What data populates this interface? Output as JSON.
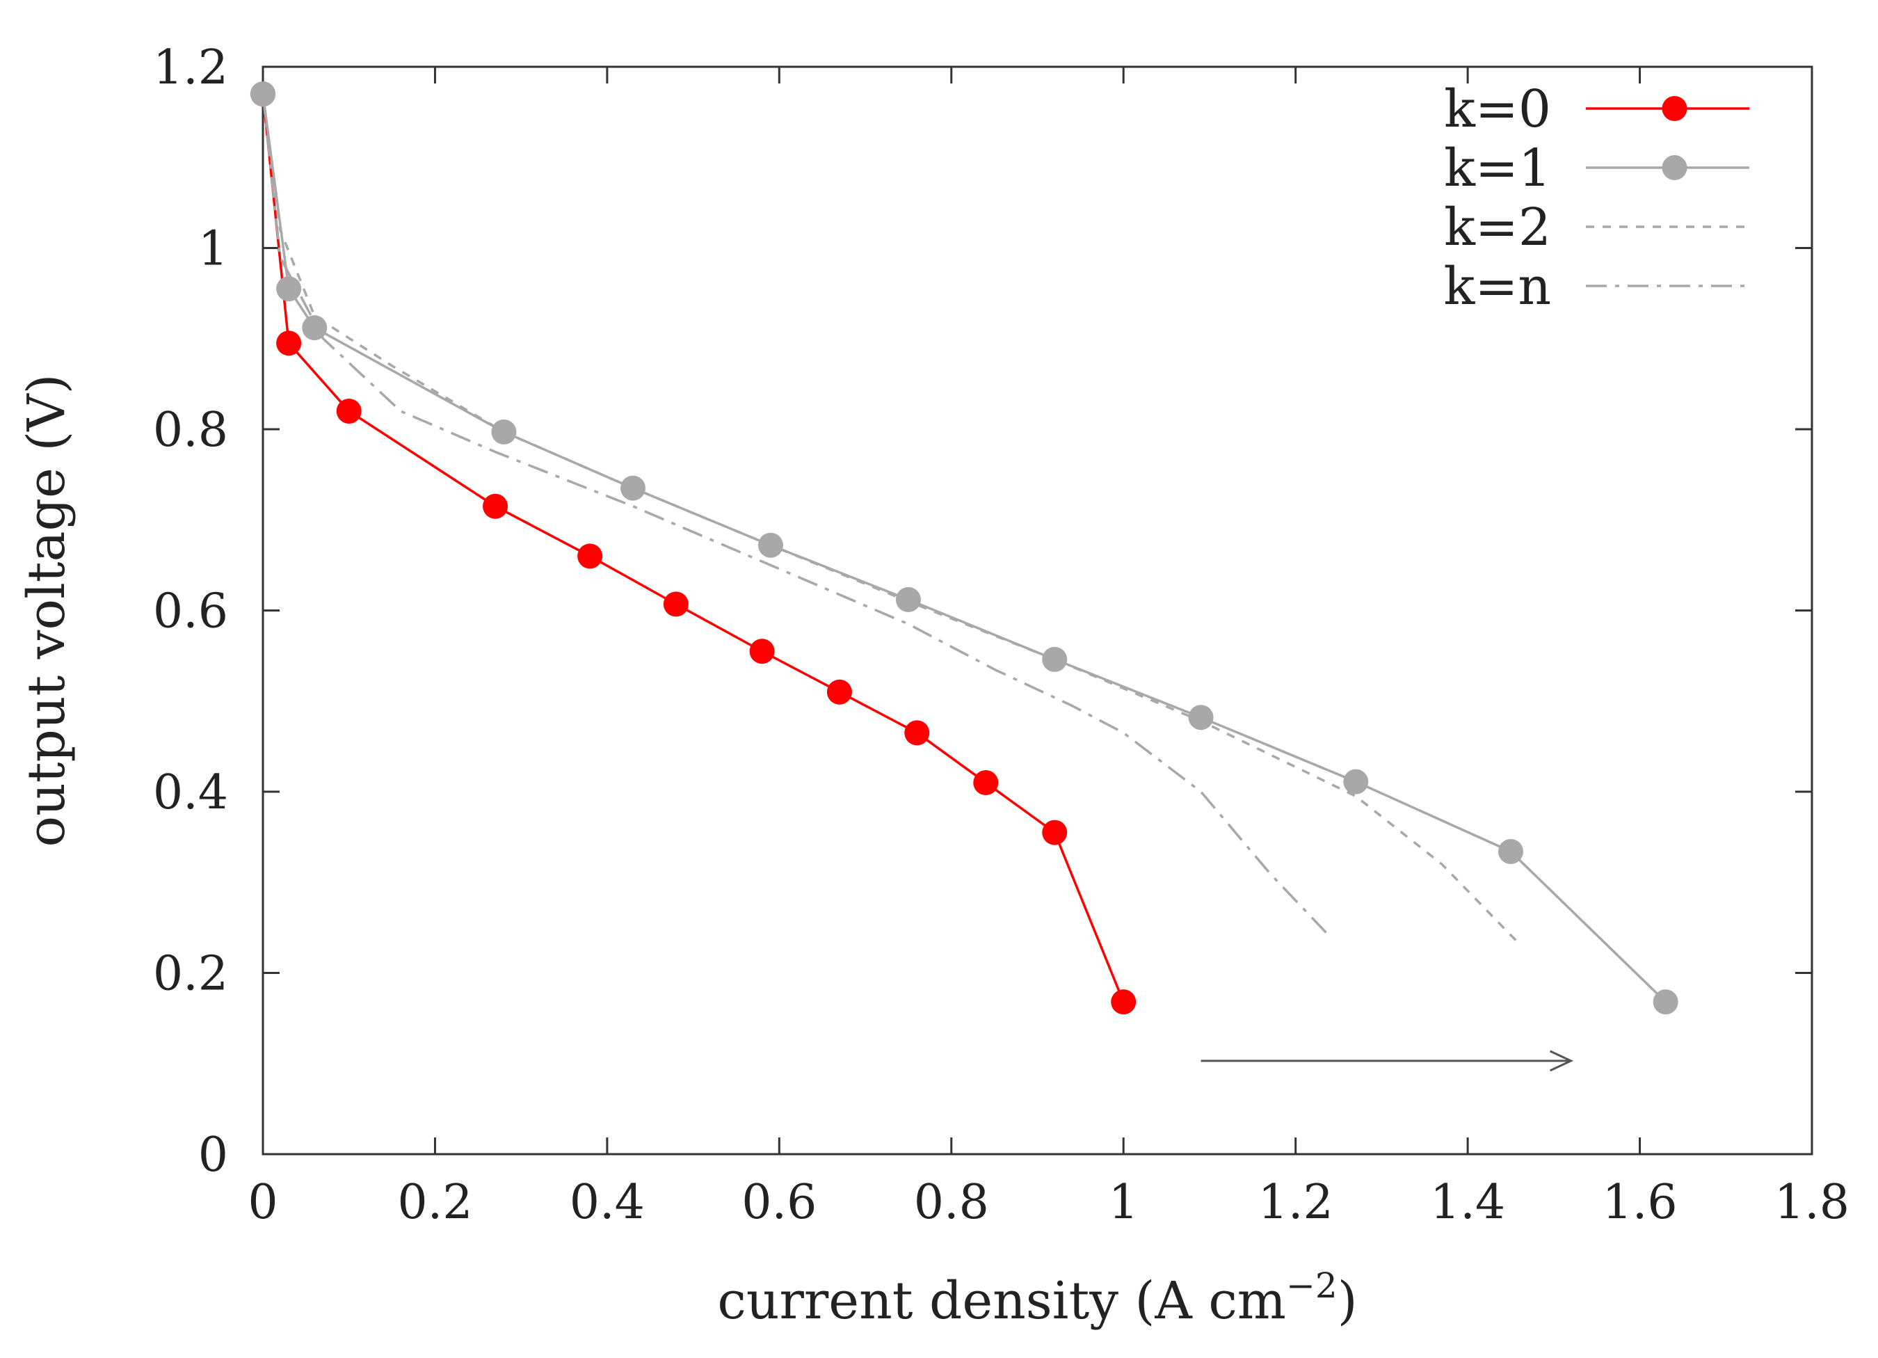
{
  "chart_data": {
    "type": "line",
    "title": "",
    "xlabel": "current density (A cm",
    "xlabel_superscript": "−2",
    "xlabel_close": ")",
    "ylabel": "output voltage (V)",
    "xlim": [
      0,
      1.8
    ],
    "ylim": [
      0,
      1.2
    ],
    "xticks": [
      0,
      0.2,
      0.4,
      0.6,
      0.8,
      1,
      1.2,
      1.4,
      1.6,
      1.8
    ],
    "xtick_labels": [
      "0",
      "0.2",
      "0.4",
      "0.6",
      "0.8",
      "1",
      "1.2",
      "1.4",
      "1.6",
      "1.8"
    ],
    "yticks": [
      0,
      0.2,
      0.4,
      0.6,
      0.8,
      1,
      1.2
    ],
    "ytick_labels": [
      "0",
      "0.2",
      "0.4",
      "0.6",
      "0.8",
      "1",
      "1.2"
    ],
    "grid": false,
    "legend_position": "top-right",
    "series": [
      {
        "name": "k=0",
        "color": "#ff0000",
        "style": "solid-markers",
        "x": [
          0,
          0.03,
          0.1,
          0.27,
          0.38,
          0.48,
          0.58,
          0.67,
          0.76,
          0.84,
          0.92,
          1.0
        ],
        "y": [
          1.17,
          0.895,
          0.82,
          0.715,
          0.66,
          0.607,
          0.555,
          0.51,
          0.465,
          0.41,
          0.355,
          0.168
        ]
      },
      {
        "name": "k=1",
        "color": "#a8a8a8",
        "style": "solid-markers",
        "x": [
          0,
          0.03,
          0.06,
          0.28,
          0.43,
          0.59,
          0.75,
          0.92,
          1.09,
          1.27,
          1.45,
          1.63
        ],
        "y": [
          1.17,
          0.955,
          0.912,
          0.797,
          0.735,
          0.672,
          0.612,
          0.546,
          0.482,
          0.411,
          0.334,
          0.168
        ]
      },
      {
        "name": "k=2",
        "color": "#a8a8a8",
        "style": "dashed",
        "x": [
          0,
          0.02,
          0.06,
          0.15,
          0.28,
          0.43,
          0.59,
          0.75,
          0.92,
          1.09,
          1.27,
          1.37,
          1.46
        ],
        "y": [
          1.17,
          1.02,
          0.925,
          0.87,
          0.797,
          0.735,
          0.672,
          0.61,
          0.546,
          0.478,
          0.395,
          0.32,
          0.232
        ]
      },
      {
        "name": "k=n",
        "color": "#a8a8a8",
        "style": "dashdot",
        "x": [
          0,
          0.02,
          0.07,
          0.16,
          0.27,
          0.43,
          0.59,
          0.75,
          0.85,
          0.94,
          1.0,
          1.09,
          1.17,
          1.24
        ],
        "y": [
          1.17,
          0.99,
          0.9,
          0.82,
          0.775,
          0.715,
          0.65,
          0.585,
          0.535,
          0.495,
          0.465,
          0.4,
          0.31,
          0.24
        ]
      }
    ],
    "annotation_arrow": {
      "from": [
        1.09,
        0.103
      ],
      "to": [
        1.52,
        0.103
      ],
      "color": "#555555"
    }
  }
}
